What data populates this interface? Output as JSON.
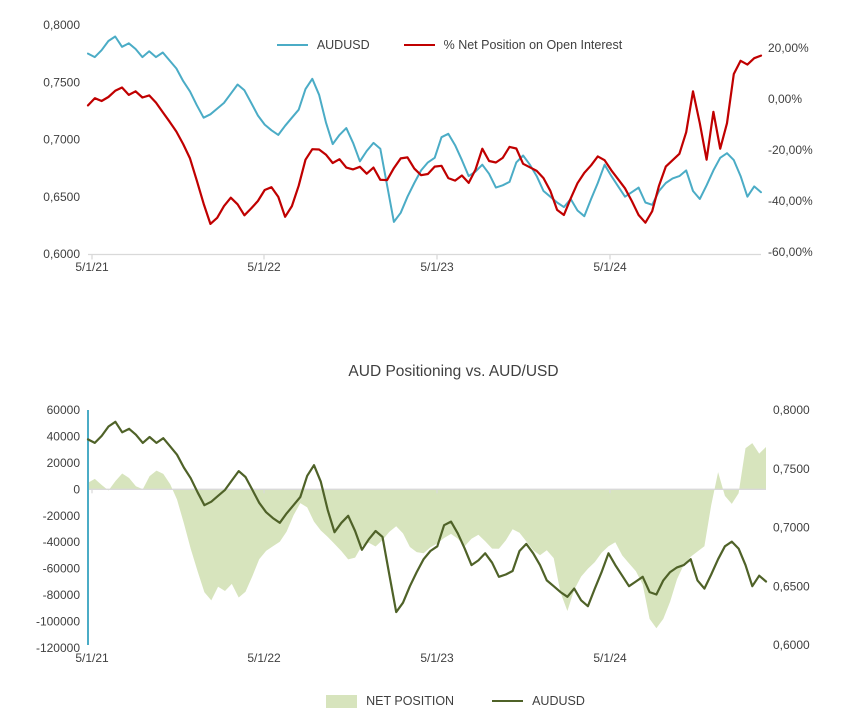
{
  "colors": {
    "audusd_blue": "#4bacc6",
    "net_red": "#c00000",
    "area_green": "#d7e4bd",
    "dark_olive": "#4f6228",
    "axis_gray": "#d9d9d9",
    "text_gray": "#404040",
    "teal_axis_line": "#4bacc6"
  },
  "chart_data": [
    {
      "type": "line",
      "title": "",
      "legend": [
        {
          "label": "AUDUSD",
          "color": "#4bacc6",
          "swatch": "line"
        },
        {
          "label": "% Net Position on Open Interest",
          "color": "#c00000",
          "swatch": "line"
        }
      ],
      "x_ticks": [
        "5/1/21",
        "5/1/22",
        "5/1/23",
        "5/1/24"
      ],
      "left_axis": {
        "labels": [
          "0,8000",
          "0,7500",
          "0,7000",
          "0,6500",
          "0,6000"
        ],
        "max": 0.8,
        "min": 0.6
      },
      "right_axis": {
        "labels": [
          "20,00%",
          "0,00%",
          "-20,00%",
          "-40,00%",
          "-60,00%"
        ],
        "max": 20,
        "min": -60
      },
      "grid": "off",
      "legend_position": "top-center",
      "series": [
        {
          "name": "AUDUSD",
          "axis": "left",
          "color": "#4bacc6",
          "width": 2,
          "values": [
            0.775,
            0.772,
            0.778,
            0.786,
            0.79,
            0.781,
            0.784,
            0.779,
            0.772,
            0.777,
            0.772,
            0.776,
            0.769,
            0.762,
            0.751,
            0.742,
            0.73,
            0.719,
            0.722,
            0.727,
            0.732,
            0.74,
            0.748,
            0.743,
            0.732,
            0.721,
            0.713,
            0.708,
            0.704,
            0.712,
            0.719,
            0.726,
            0.744,
            0.753,
            0.739,
            0.715,
            0.696,
            0.704,
            0.71,
            0.697,
            0.681,
            0.69,
            0.697,
            0.692,
            0.66,
            0.628,
            0.636,
            0.65,
            0.662,
            0.673,
            0.68,
            0.684,
            0.702,
            0.705,
            0.695,
            0.682,
            0.668,
            0.672,
            0.678,
            0.67,
            0.658,
            0.66,
            0.663,
            0.68,
            0.686,
            0.678,
            0.668,
            0.655,
            0.65,
            0.645,
            0.641,
            0.648,
            0.638,
            0.633,
            0.648,
            0.662,
            0.678,
            0.668,
            0.659,
            0.65,
            0.654,
            0.658,
            0.645,
            0.643,
            0.655,
            0.662,
            0.666,
            0.668,
            0.673,
            0.655,
            0.648,
            0.66,
            0.673,
            0.684,
            0.688,
            0.682,
            0.668,
            0.65,
            0.659,
            0.654
          ]
        },
        {
          "name": "% Net Position on Open Interest",
          "axis": "right",
          "color": "#c00000",
          "width": 2.2,
          "values": [
            -2.5,
            0.3,
            -0.8,
            0.8,
            3.2,
            4.5,
            1.6,
            3.0,
            0.6,
            1.4,
            -1.4,
            -5.2,
            -8.9,
            -12.8,
            -17.7,
            -23.3,
            -32,
            -41,
            -49,
            -46.6,
            -42,
            -38.7,
            -41.3,
            -45.6,
            -42.9,
            -40,
            -35.7,
            -34.6,
            -38.4,
            -46.2,
            -42,
            -34,
            -23.8,
            -19.7,
            -19.8,
            -21.8,
            -25.1,
            -23.6,
            -26.9,
            -27.6,
            -26.6,
            -29.3,
            -26.9,
            -31.7,
            -31.8,
            -27.1,
            -23.3,
            -22.9,
            -27.3,
            -29.9,
            -29.4,
            -26.5,
            -26.2,
            -31,
            -32,
            -30,
            -32.9,
            -27.7,
            -19.5,
            -24.3,
            -24.9,
            -23.1,
            -18.8,
            -19.4,
            -25.4,
            -26.8,
            -28.2,
            -31,
            -36,
            -43.5,
            -45.5,
            -39,
            -33,
            -29,
            -26,
            -22.5,
            -24,
            -28,
            -31.5,
            -35,
            -40,
            -45.5,
            -48.5,
            -44,
            -34,
            -26.5,
            -24,
            -21.5,
            -13,
            3,
            -9.5,
            -23.8,
            -5,
            -19.5,
            -9.5,
            9.8,
            15,
            13.5,
            16,
            17
          ]
        }
      ]
    },
    {
      "type": "area+line",
      "title": "AUD Positioning vs. AUD/USD",
      "legend": [
        {
          "label": "NET POSITION",
          "color": "#d7e4bd",
          "swatch": "area"
        },
        {
          "label": "AUDUSD",
          "color": "#4f6228",
          "swatch": "line"
        }
      ],
      "x_ticks": [
        "5/1/21",
        "5/1/22",
        "5/1/23",
        "5/1/24"
      ],
      "left_axis": {
        "labels": [
          "60000",
          "40000",
          "20000",
          "0",
          "-20000",
          "-40000",
          "-60000",
          "-80000",
          "-100000",
          "-120000"
        ],
        "max": 60000,
        "min": -120000
      },
      "right_axis": {
        "labels": [
          "0,8000",
          "0,7500",
          "0,7000",
          "0,6500",
          "0,6000"
        ],
        "max": 0.8,
        "min": 0.6
      },
      "grid": "off",
      "legend_position": "bottom-center",
      "series": [
        {
          "name": "NET POSITION",
          "axis": "left",
          "type": "area",
          "color": "#d7e4bd",
          "values": [
            5000,
            7900,
            3300,
            -900,
            6200,
            12000,
            8600,
            2400,
            0,
            10000,
            14200,
            11700,
            3800,
            -7700,
            -25800,
            -45000,
            -62000,
            -77900,
            -84000,
            -73700,
            -76900,
            -71500,
            -81800,
            -77400,
            -65600,
            -52900,
            -46600,
            -43100,
            -39700,
            -32000,
            -19700,
            -10400,
            -13700,
            -24400,
            -31100,
            -36000,
            -41300,
            -46700,
            -53000,
            -51600,
            -42600,
            -40400,
            -43200,
            -38300,
            -32200,
            -27900,
            -33300,
            -43600,
            -47500,
            -48400,
            -43900,
            -40900,
            -36800,
            -33700,
            -37400,
            -43000,
            -37300,
            -34400,
            -39300,
            -44800,
            -44900,
            -38600,
            -30200,
            -32900,
            -39400,
            -46000,
            -49900,
            -46000,
            -52000,
            -78000,
            -92000,
            -76000,
            -66000,
            -60000,
            -55000,
            -48000,
            -43000,
            -40000,
            -50000,
            -56000,
            -62000,
            -72000,
            -98000,
            -105000,
            -98000,
            -85000,
            -68000,
            -57000,
            -51000,
            -47000,
            -43000,
            -12000,
            13000,
            -5000,
            -11000,
            -3000,
            31000,
            35000,
            27000,
            32000
          ]
        },
        {
          "name": "AUDUSD",
          "axis": "right",
          "type": "line",
          "color": "#4f6228",
          "width": 2.2,
          "values": [
            0.775,
            0.772,
            0.778,
            0.786,
            0.79,
            0.781,
            0.784,
            0.779,
            0.772,
            0.777,
            0.772,
            0.776,
            0.769,
            0.762,
            0.751,
            0.742,
            0.73,
            0.719,
            0.722,
            0.727,
            0.732,
            0.74,
            0.748,
            0.743,
            0.732,
            0.721,
            0.713,
            0.708,
            0.704,
            0.712,
            0.719,
            0.726,
            0.744,
            0.753,
            0.739,
            0.715,
            0.696,
            0.704,
            0.71,
            0.697,
            0.681,
            0.69,
            0.697,
            0.692,
            0.66,
            0.628,
            0.636,
            0.65,
            0.662,
            0.673,
            0.68,
            0.684,
            0.702,
            0.705,
            0.695,
            0.682,
            0.668,
            0.672,
            0.678,
            0.67,
            0.658,
            0.66,
            0.663,
            0.68,
            0.686,
            0.678,
            0.668,
            0.655,
            0.65,
            0.645,
            0.641,
            0.648,
            0.638,
            0.633,
            0.648,
            0.662,
            0.678,
            0.668,
            0.659,
            0.65,
            0.654,
            0.658,
            0.645,
            0.643,
            0.655,
            0.662,
            0.666,
            0.668,
            0.673,
            0.655,
            0.648,
            0.66,
            0.673,
            0.684,
            0.688,
            0.682,
            0.668,
            0.65,
            0.659,
            0.654
          ]
        }
      ]
    }
  ]
}
